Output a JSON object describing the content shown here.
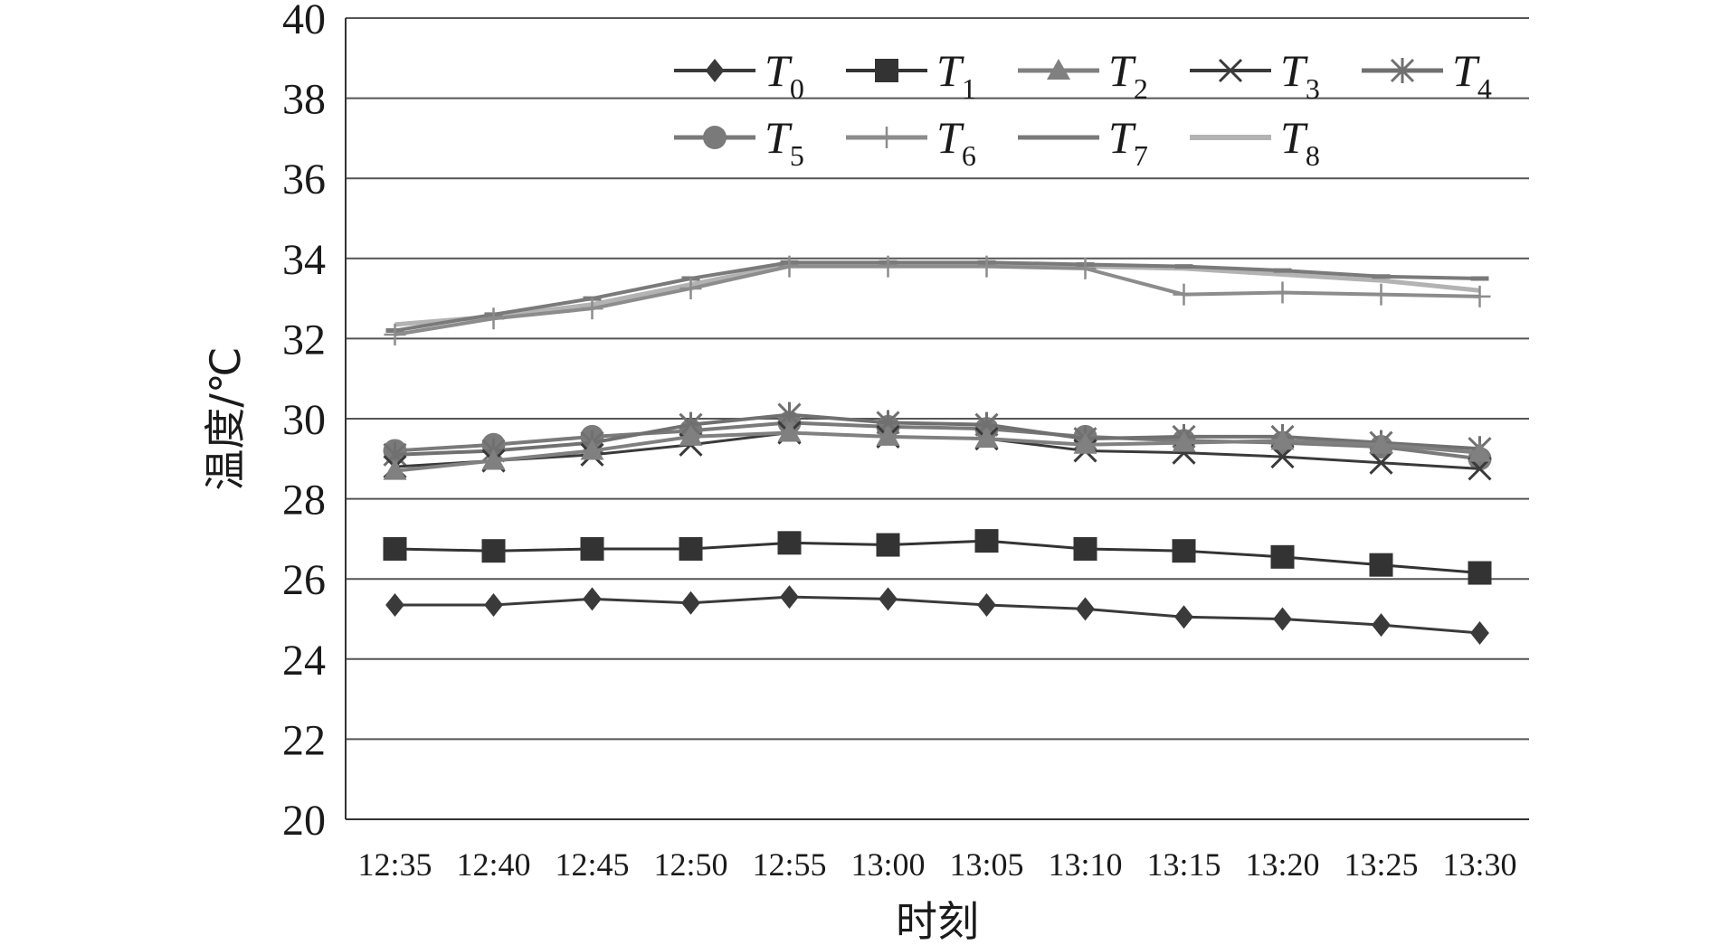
{
  "chart_data": {
    "type": "line",
    "xlabel": "时刻",
    "ylabel": "温度/℃",
    "ylim": [
      20,
      40
    ],
    "yticks": [
      20,
      22,
      24,
      26,
      28,
      30,
      32,
      34,
      36,
      38,
      40
    ],
    "grid": "horizontal",
    "legend_position": "top-right",
    "categories": [
      "12:35",
      "12:40",
      "12:45",
      "12:50",
      "12:55",
      "13:00",
      "13:05",
      "13:10",
      "13:15",
      "13:20",
      "13:25",
      "13:30"
    ],
    "series": [
      {
        "name": "T",
        "sub": "0",
        "marker": "diamond",
        "color": "#3a3a3a",
        "values": [
          25.35,
          25.35,
          25.5,
          25.4,
          25.55,
          25.5,
          25.35,
          25.25,
          25.05,
          25.0,
          24.85,
          24.65
        ]
      },
      {
        "name": "T",
        "sub": "1",
        "marker": "square",
        "color": "#333333",
        "values": [
          26.75,
          26.7,
          26.75,
          26.75,
          26.9,
          26.85,
          26.95,
          26.75,
          26.7,
          26.55,
          26.35,
          26.15
        ]
      },
      {
        "name": "T",
        "sub": "2",
        "marker": "triangle",
        "color": "#808080",
        "values": [
          28.7,
          28.95,
          29.2,
          29.55,
          29.65,
          29.55,
          29.5,
          29.35,
          29.4,
          29.45,
          29.35,
          29.15
        ]
      },
      {
        "name": "T",
        "sub": "3",
        "marker": "x",
        "color": "#3a3a3a",
        "values": [
          28.8,
          28.95,
          29.1,
          29.35,
          29.65,
          29.55,
          29.5,
          29.2,
          29.15,
          29.05,
          28.9,
          28.75
        ]
      },
      {
        "name": "T",
        "sub": "4",
        "marker": "star",
        "color": "#707070",
        "values": [
          29.1,
          29.2,
          29.4,
          29.85,
          30.1,
          29.9,
          29.85,
          29.5,
          29.55,
          29.55,
          29.4,
          29.25
        ]
      },
      {
        "name": "T",
        "sub": "5",
        "marker": "circle",
        "color": "#7a7a7a",
        "values": [
          29.2,
          29.35,
          29.55,
          29.7,
          29.9,
          29.8,
          29.75,
          29.55,
          29.45,
          29.4,
          29.3,
          29.0
        ]
      },
      {
        "name": "T",
        "sub": "6",
        "marker": "plus",
        "color": "#8c8c8c",
        "values": [
          32.1,
          32.5,
          32.75,
          33.25,
          33.8,
          33.8,
          33.8,
          33.75,
          33.1,
          33.15,
          33.1,
          33.05
        ]
      },
      {
        "name": "T",
        "sub": "7",
        "marker": "dash",
        "color": "#7a7a7a",
        "values": [
          32.2,
          32.6,
          33.0,
          33.5,
          33.9,
          33.9,
          33.9,
          33.85,
          33.8,
          33.7,
          33.55,
          33.5
        ]
      },
      {
        "name": "T",
        "sub": "8",
        "marker": "none",
        "color": "#b3b3b3",
        "values": [
          32.35,
          32.55,
          32.85,
          33.35,
          33.85,
          33.85,
          33.85,
          33.8,
          33.75,
          33.6,
          33.45,
          33.2
        ]
      }
    ]
  }
}
